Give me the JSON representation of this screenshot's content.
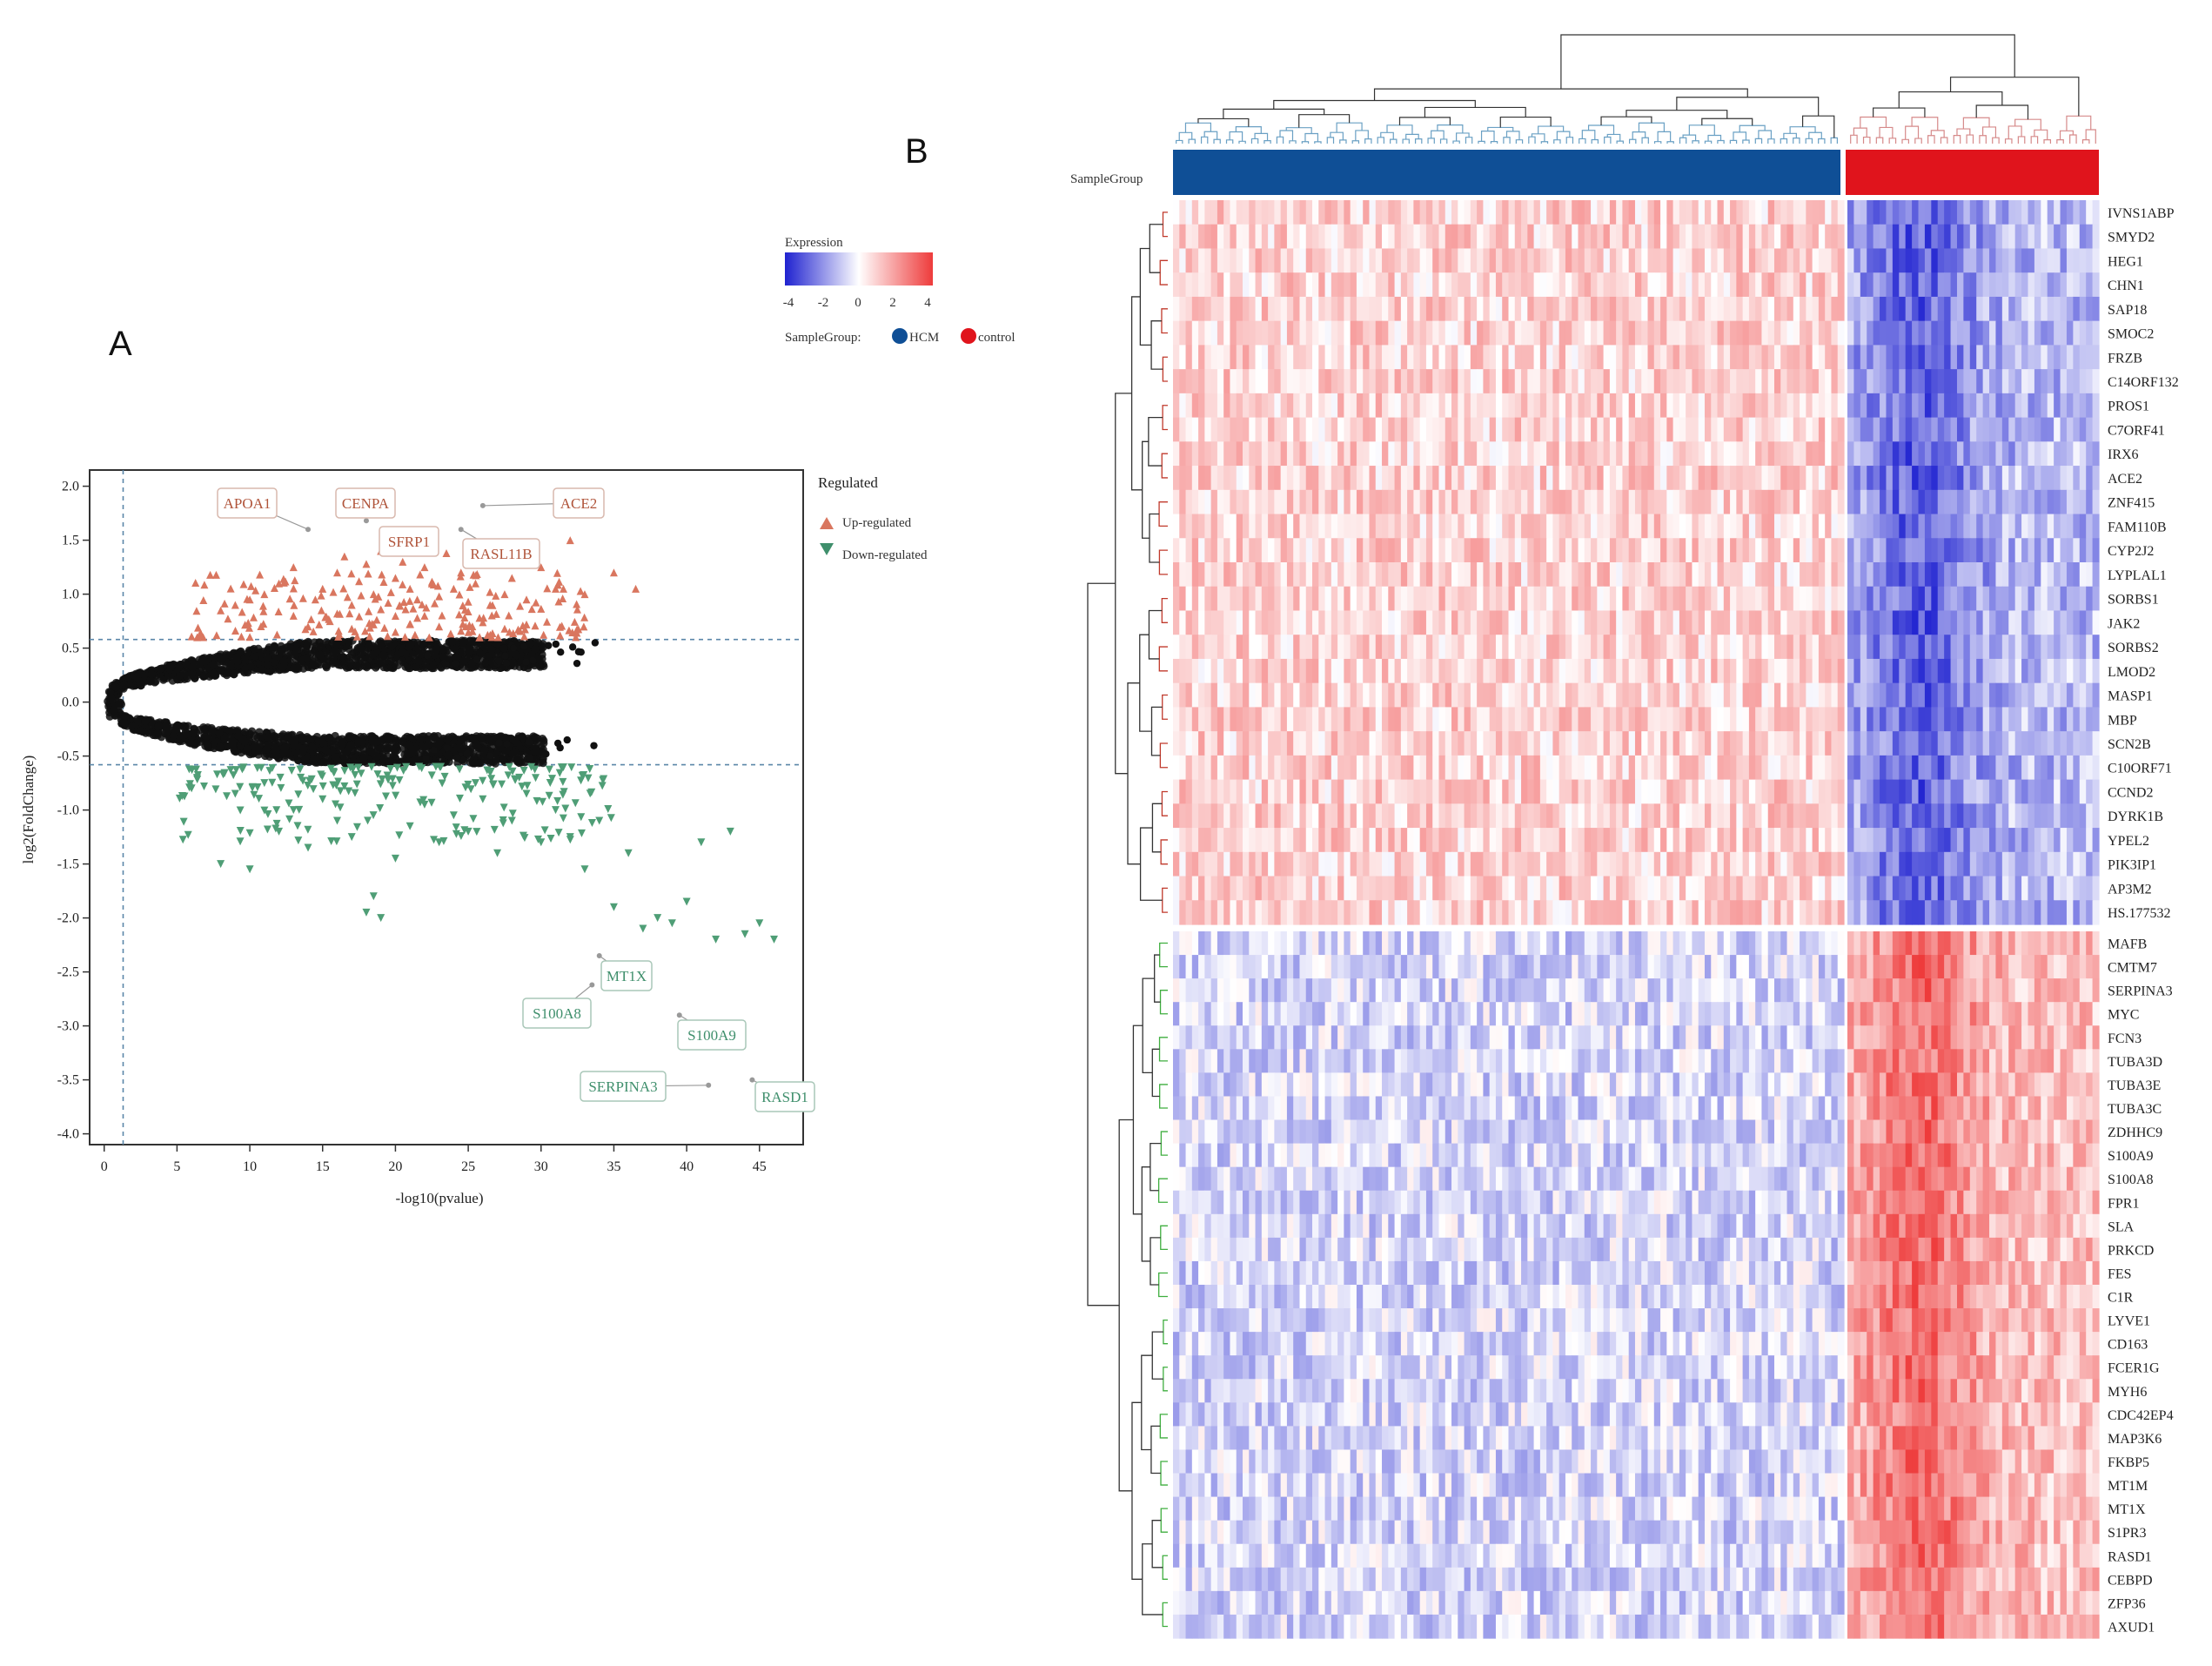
{
  "colors": {
    "up": "#d9765f",
    "down": "#4f9e76",
    "ns": "#111111",
    "hcm": "#0f4f96",
    "control": "#e0141c",
    "heat_low": "#2d3fd6",
    "heat_mid": "#ffffff",
    "heat_high": "#ee3b3b"
  },
  "chart_data": [
    {
      "type": "scatter",
      "panel": "A",
      "title": "",
      "xlabel": "-log10(pvalue)",
      "ylabel": "log2(FoldChange)",
      "xlim": [
        -1,
        48
      ],
      "ylim": [
        -4.1,
        2.15
      ],
      "xticks": [
        0,
        5,
        10,
        15,
        20,
        25,
        30,
        35,
        40,
        45
      ],
      "yticks": [
        2.0,
        1.5,
        1.0,
        0.5,
        0.0,
        -0.5,
        -1.0,
        -1.5,
        -2.0,
        -2.5,
        -3.0,
        -3.5,
        -4.0
      ],
      "thresholds": {
        "fold_change": [
          -0.58,
          0.58
        ],
        "pvalue": 1.3
      },
      "legend_title": "Regulated",
      "legend": [
        {
          "key": "up",
          "label": "Up-regulated",
          "marker": "triangle-up"
        },
        {
          "key": "down",
          "label": "Down-regulated",
          "marker": "triangle-down"
        }
      ],
      "labeled_points": [
        {
          "gene": "APOA1",
          "x": 14.0,
          "y": 1.6,
          "group": "up"
        },
        {
          "gene": "CENPA",
          "x": 18.0,
          "y": 1.68,
          "group": "up"
        },
        {
          "gene": "SFRP1",
          "x": 22.0,
          "y": 1.53,
          "group": "up"
        },
        {
          "gene": "RASL11B",
          "x": 24.5,
          "y": 1.6,
          "group": "up"
        },
        {
          "gene": "ACE2",
          "x": 26.0,
          "y": 1.82,
          "group": "up"
        },
        {
          "gene": "MT1X",
          "x": 34.0,
          "y": -2.35,
          "group": "down"
        },
        {
          "gene": "S100A8",
          "x": 33.5,
          "y": -2.62,
          "group": "down"
        },
        {
          "gene": "S100A9",
          "x": 39.5,
          "y": -2.9,
          "group": "down"
        },
        {
          "gene": "SERPINA3",
          "x": 41.5,
          "y": -3.55,
          "group": "down"
        },
        {
          "gene": "RASD1",
          "x": 44.5,
          "y": -3.5,
          "group": "down"
        }
      ],
      "up_points": [
        [
          12,
          1.1
        ],
        [
          13,
          1.25
        ],
        [
          14.5,
          0.95
        ],
        [
          15,
          1.05
        ],
        [
          16,
          1.2
        ],
        [
          16.5,
          1.35
        ],
        [
          17,
          0.9
        ],
        [
          17.5,
          1.12
        ],
        [
          18,
          1.28
        ],
        [
          18.5,
          1.0
        ],
        [
          19,
          1.4
        ],
        [
          19.5,
          0.92
        ],
        [
          20,
          1.15
        ],
        [
          20.5,
          1.3
        ],
        [
          21,
          1.05
        ],
        [
          21.5,
          0.95
        ],
        [
          22,
          1.25
        ],
        [
          22.5,
          1.1
        ],
        [
          23,
          0.98
        ],
        [
          23.5,
          1.38
        ],
        [
          24,
          1.05
        ],
        [
          24.5,
          1.2
        ],
        [
          25,
          0.93
        ],
        [
          25.5,
          1.1
        ],
        [
          26,
          1.3
        ],
        [
          26.5,
          0.9
        ],
        [
          27,
          1.45
        ],
        [
          27.5,
          1.0
        ],
        [
          28,
          1.15
        ],
        [
          29,
          0.95
        ],
        [
          30,
          1.25
        ],
        [
          31,
          1.05
        ],
        [
          32,
          1.5
        ],
        [
          33,
          1.0
        ],
        [
          35,
          1.2
        ],
        [
          36.5,
          1.05
        ],
        [
          10,
          0.95
        ],
        [
          11,
          1.0
        ],
        [
          9,
          0.9
        ],
        [
          8,
          0.85
        ],
        [
          14,
          0.7
        ],
        [
          15.5,
          0.75
        ],
        [
          17,
          0.68
        ],
        [
          18.5,
          0.72
        ],
        [
          20,
          0.65
        ],
        [
          21.5,
          0.78
        ],
        [
          23,
          0.7
        ],
        [
          24.5,
          0.66
        ],
        [
          26,
          0.74
        ],
        [
          27.5,
          0.68
        ],
        [
          29,
          0.72
        ],
        [
          13,
          0.8
        ],
        [
          16,
          0.82
        ],
        [
          19,
          0.86
        ],
        [
          22,
          0.8
        ],
        [
          25,
          0.84
        ]
      ],
      "down_points": [
        [
          6,
          -0.8
        ],
        [
          8,
          -1.5
        ],
        [
          10,
          -1.55
        ],
        [
          12,
          -1.2
        ],
        [
          13,
          -1.0
        ],
        [
          14,
          -1.35
        ],
        [
          15,
          -0.9
        ],
        [
          16,
          -1.1
        ],
        [
          17,
          -1.25
        ],
        [
          18,
          -1.95
        ],
        [
          18.5,
          -1.8
        ],
        [
          19,
          -2.0
        ],
        [
          20,
          -1.45
        ],
        [
          21,
          -1.15
        ],
        [
          22,
          -0.95
        ],
        [
          23,
          -1.3
        ],
        [
          24,
          -1.05
        ],
        [
          25,
          -1.2
        ],
        [
          26,
          -0.9
        ],
        [
          27,
          -1.4
        ],
        [
          28,
          -1.1
        ],
        [
          29,
          -0.85
        ],
        [
          30,
          -1.3
        ],
        [
          31,
          -1.0
        ],
        [
          32,
          -1.25
        ],
        [
          33,
          -1.55
        ],
        [
          34,
          -1.1
        ],
        [
          35,
          -1.9
        ],
        [
          36,
          -1.4
        ],
        [
          37,
          -2.1
        ],
        [
          38,
          -2.0
        ],
        [
          39,
          -2.05
        ],
        [
          40,
          -1.85
        ],
        [
          41,
          -1.3
        ],
        [
          42,
          -2.2
        ],
        [
          43,
          -1.2
        ],
        [
          44,
          -2.15
        ],
        [
          45,
          -2.05
        ],
        [
          46,
          -2.2
        ],
        [
          11,
          -0.75
        ],
        [
          13.5,
          -0.7
        ],
        [
          16.5,
          -0.78
        ],
        [
          19.5,
          -0.72
        ],
        [
          22.5,
          -0.68
        ],
        [
          25.5,
          -0.75
        ],
        [
          28.5,
          -0.7
        ],
        [
          31.5,
          -0.74
        ],
        [
          9,
          -0.85
        ]
      ],
      "ns_points_description": "dense black crescent between log2FC -0.6 and 0.6"
    },
    {
      "type": "heatmap",
      "panel": "B",
      "legend_title": "Expression",
      "scale_ticks": [
        "-4",
        "-2",
        "0",
        "2",
        "4"
      ],
      "scale_range": [
        -4,
        4
      ],
      "group_label": "SampleGroup:",
      "group_track_label": "SampleGroup",
      "groups": [
        {
          "name": "HCM",
          "color_key": "hcm"
        },
        {
          "name": "control",
          "color_key": "control"
        }
      ],
      "hcm_columns": 106,
      "control_columns": 39,
      "cluster1_genes": [
        "IVNS1ABP",
        "SMYD2",
        "HEG1",
        "CHN1",
        "SAP18",
        "SMOC2",
        "FRZB",
        "C14ORF132",
        "PROS1",
        "C7ORF41",
        "IRX6",
        "ACE2",
        "ZNF415",
        "FAM110B",
        "CYP2J2",
        "LYPLAL1",
        "SORBS1",
        "JAK2",
        "SORBS2",
        "LMOD2",
        "MASP1",
        "MBP",
        "SCN2B",
        "C10ORF71",
        "CCND2",
        "DYRK1B",
        "YPEL2",
        "PIK3IP1",
        "AP3M2",
        "HS.177532"
      ],
      "cluster2_genes": [
        "MAFB",
        "CMTM7",
        "SERPINA3",
        "MYC",
        "FCN3",
        "TUBA3D",
        "TUBA3E",
        "TUBA3C",
        "ZDHHC9",
        "S100A9",
        "S100A8",
        "FPR1",
        "SLA",
        "PRKCD",
        "FES",
        "C1R",
        "LYVE1",
        "CD163",
        "FCER1G",
        "MYH6",
        "CDC42EP4",
        "MAP3K6",
        "FKBP5",
        "MT1M",
        "MT1X",
        "S1PR3",
        "RASD1",
        "CEBPD",
        "ZFP36",
        "AXUD1"
      ],
      "mean_expression": {
        "cluster1": {
          "HCM": 0.9,
          "control": -2.2
        },
        "cluster2": {
          "HCM": -0.7,
          "control": 2.3
        }
      }
    }
  ],
  "labels": {
    "panel_a": "A",
    "panel_b": "B"
  }
}
